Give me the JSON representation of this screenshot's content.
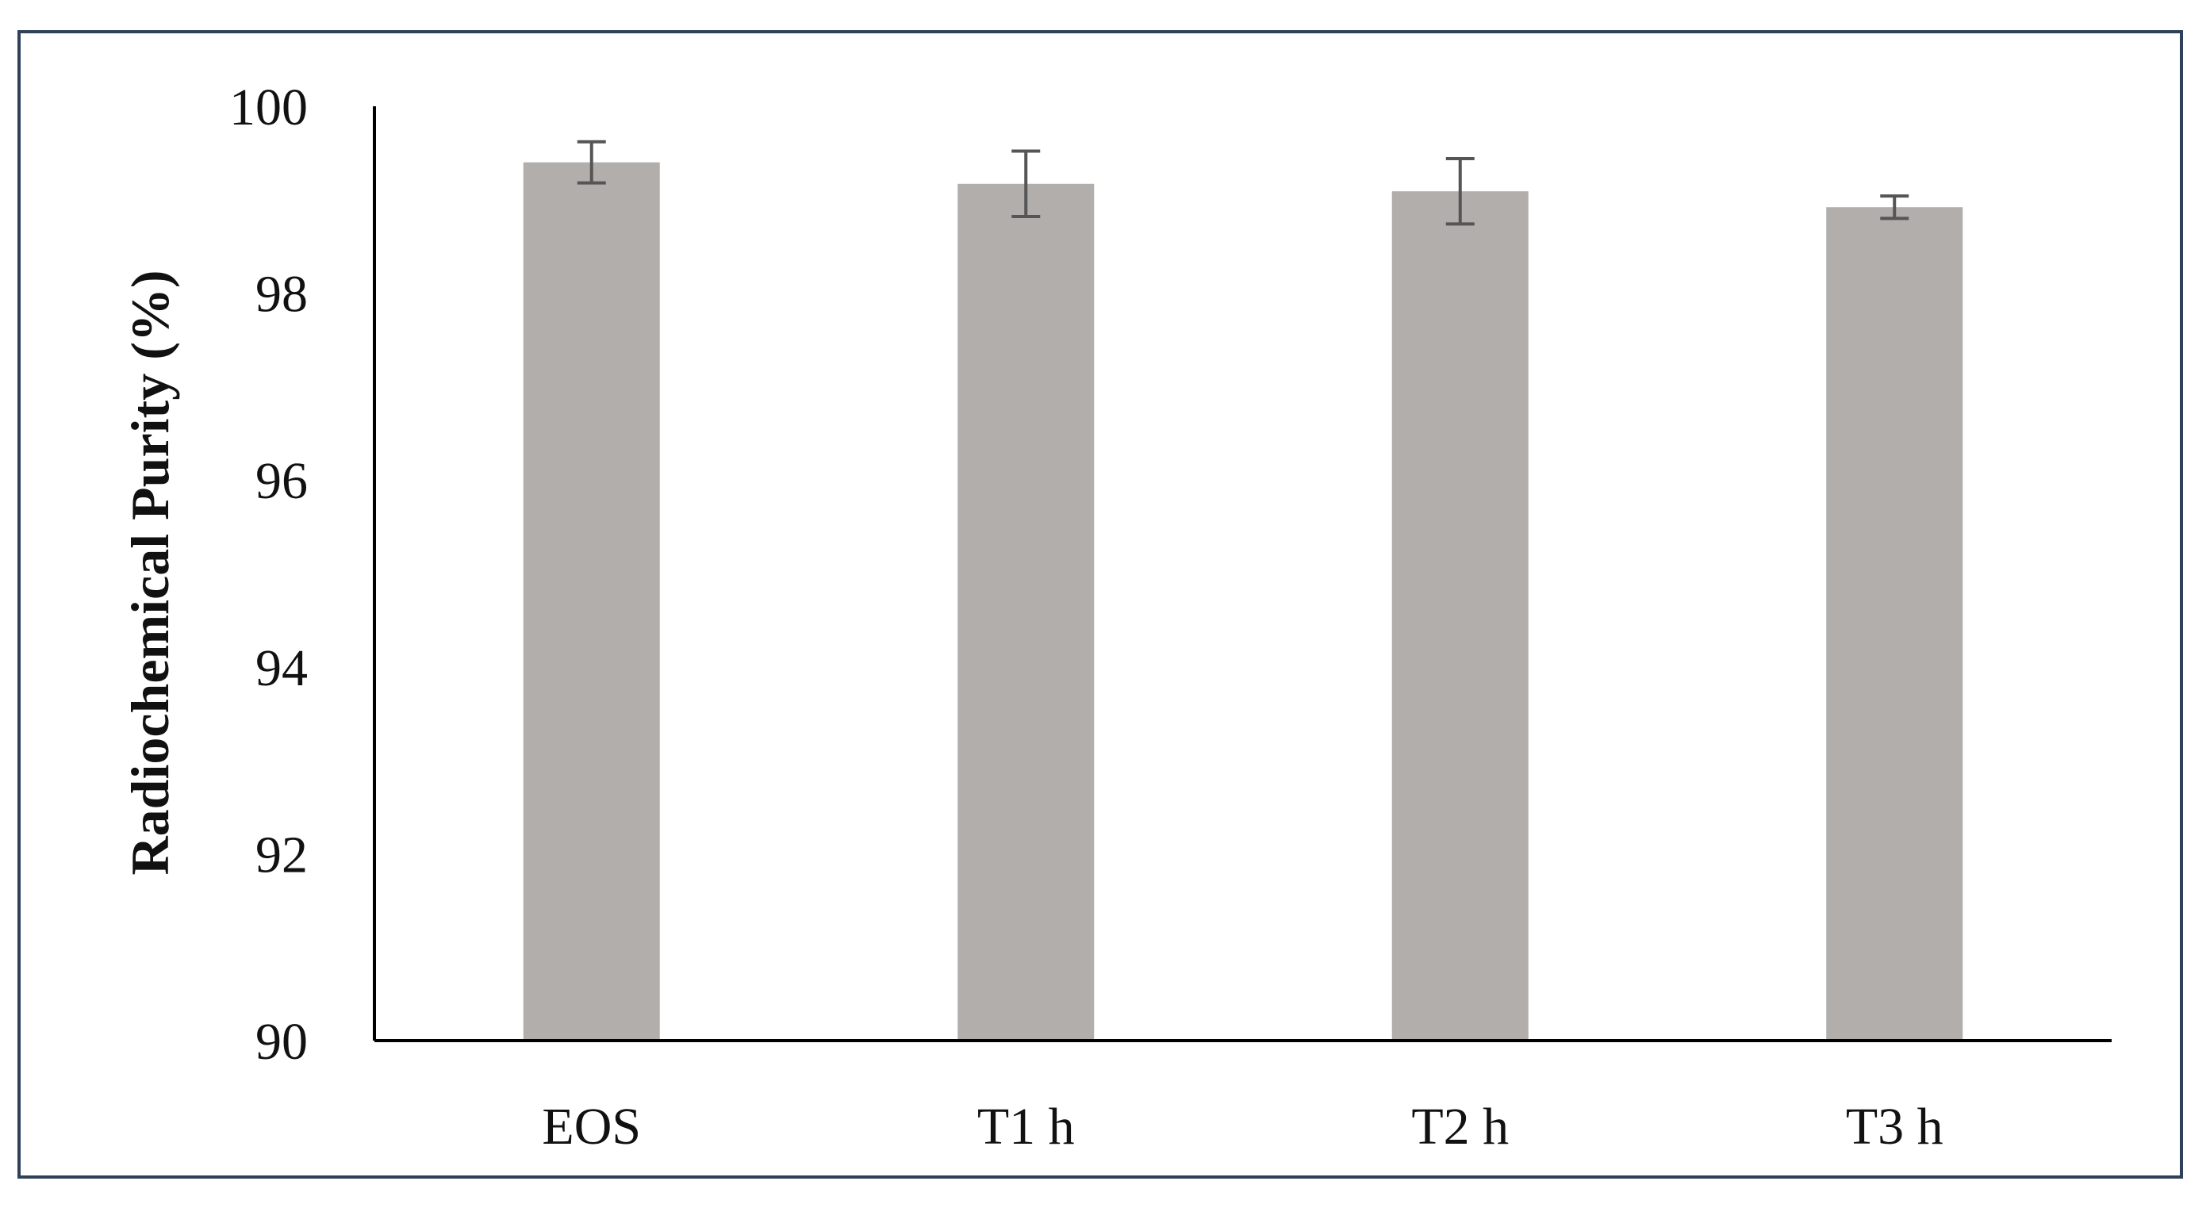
{
  "chart_data": {
    "type": "bar",
    "title": "",
    "xlabel": "",
    "ylabel": "Radiochemical Purity (%)",
    "ylim": [
      90,
      100
    ],
    "yticks": [
      90,
      92,
      94,
      96,
      98,
      100
    ],
    "categories": [
      "EOS",
      "T1 h",
      "T2 h",
      "T3 h"
    ],
    "series": [
      {
        "values": [
          99.4,
          99.17,
          99.09,
          98.92
        ],
        "error": [
          0.22,
          0.35,
          0.35,
          0.12
        ]
      }
    ],
    "grid": false,
    "legend": "none",
    "colors": {
      "bar": "#b1aeac",
      "axis": "#000000",
      "error_bar": "#555555",
      "frame": "#2f4159"
    }
  }
}
